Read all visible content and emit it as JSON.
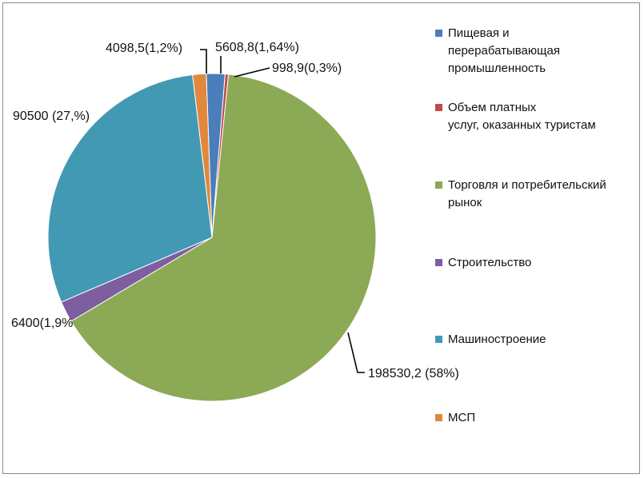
{
  "chart_data": {
    "type": "pie",
    "title": "",
    "series": [
      {
        "name": "Пищевая и перерабатывающая промышленность",
        "value": 5608.8,
        "label": "5608,8(1,64%)",
        "color": "#4A7EBB"
      },
      {
        "name": "Объем платных услуг, оказанных туристам",
        "value": 998.9,
        "label": "998,9(0,3%)",
        "color": "#BE4B48"
      },
      {
        "name": "Торговля и потребительский рынок",
        "value": 198530.2,
        "label": "198530,2 (58%)",
        "color": "#8CA955"
      },
      {
        "name": "Строительство",
        "value": 6400,
        "label": "6400(1,9%",
        "color": "#7D5FA0"
      },
      {
        "name": "Машиностроение",
        "value": 90500,
        "label": "90500 (27,%)",
        "color": "#4299B4"
      },
      {
        "name": "МСП",
        "value": 4098.5,
        "label": "4098,5(1,2%)",
        "color": "#E1883C"
      }
    ],
    "legend": {
      "placement": "right",
      "entries": [
        [
          "Пищевая и",
          "перерабатывающая",
          "промышленность"
        ],
        [
          "Объем платных",
          "услуг, оказанных туристам"
        ],
        [
          "Торговля и потребительский",
          "рынок"
        ],
        [
          "Строительство"
        ],
        [
          "Машиностроение"
        ],
        [
          "МСП"
        ]
      ]
    }
  }
}
